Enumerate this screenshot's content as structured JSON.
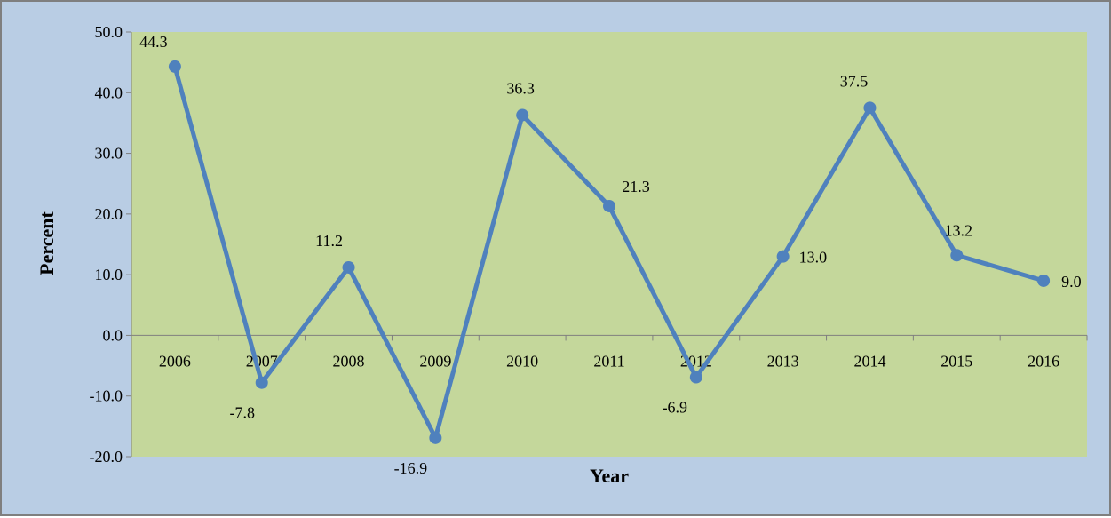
{
  "chart_data": {
    "type": "line",
    "x": [
      "2006",
      "2007",
      "2008",
      "2009",
      "2010",
      "2011",
      "2012",
      "2013",
      "2014",
      "2015",
      "2016"
    ],
    "series": [
      {
        "values": [
          44.3,
          -7.8,
          11.2,
          -16.9,
          36.3,
          21.3,
          -6.9,
          13.0,
          37.5,
          13.2,
          9.0
        ]
      }
    ],
    "data_labels": [
      "44.3",
      "-7.8",
      "11.2",
      "-16.9",
      "36.3",
      "21.3",
      "-6.9",
      "13.0",
      "37.5",
      "13.2",
      "9.0"
    ],
    "y_ticks": [
      "-20.0",
      "-10.0",
      "0.0",
      "10.0",
      "20.0",
      "30.0",
      "40.0",
      "50.0"
    ],
    "xlabel": "Year",
    "ylabel": "Percent",
    "ylim": [
      -20,
      50
    ],
    "grid": false,
    "legend": "none",
    "colors": {
      "line": "#4f81bd",
      "plot_background": "#c4d79b",
      "chart_background": "#b9cde4"
    }
  }
}
